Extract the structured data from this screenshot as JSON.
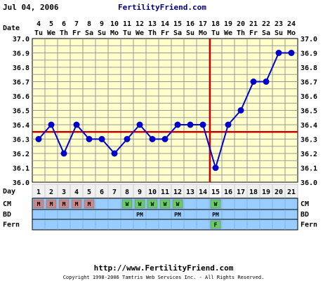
{
  "header": {
    "date": "Jul 04, 2006",
    "site": "FertilityFriend.com"
  },
  "footer": {
    "url": "http://www.FertilityFriend.com",
    "copyright": "Copyright 1998-2006 Tamtris Web Services Inc. - All Rights Reserved."
  },
  "colors": {
    "plot_bg": "#ffffcc",
    "grid": "#999999",
    "line": "#0000cc",
    "point": "#0000cc",
    "coverline": "#cc0000",
    "ovulation_line": "#cc0000",
    "row_bg": "#99ccff",
    "cm_menses": "#cc8888",
    "cm_watery": "#66cc66",
    "fern_positive": "#66cc66"
  },
  "chart_data": {
    "type": "line",
    "row_labels": {
      "date": "Date",
      "day": "Day",
      "cm": "CM",
      "bd": "BD",
      "fern": "Fern"
    },
    "dates": [
      "4",
      "5",
      "6",
      "7",
      "8",
      "9",
      "10",
      "11",
      "12",
      "13",
      "14",
      "15",
      "16",
      "17",
      "18",
      "19",
      "20",
      "21",
      "22",
      "23",
      "24"
    ],
    "weekdays": [
      "Tu",
      "We",
      "Th",
      "Fr",
      "Sa",
      "Su",
      "Mo",
      "Tu",
      "We",
      "Th",
      "Fr",
      "Sa",
      "Su",
      "Mo",
      "Tu",
      "We",
      "Th",
      "Fr",
      "Sa",
      "Su",
      "Mo"
    ],
    "cycle_days": [
      "1",
      "2",
      "3",
      "4",
      "5",
      "6",
      "7",
      "8",
      "9",
      "10",
      "11",
      "12",
      "13",
      "14",
      "15",
      "16",
      "17",
      "18",
      "19",
      "20",
      "21"
    ],
    "temperatures": [
      36.3,
      36.4,
      36.2,
      36.4,
      36.3,
      36.3,
      36.2,
      36.3,
      36.4,
      36.3,
      36.3,
      36.4,
      36.4,
      36.4,
      36.1,
      36.4,
      36.5,
      36.7,
      36.7,
      36.9,
      36.9
    ],
    "y_ticks": [
      "37.0",
      "36.9",
      "36.8",
      "36.7",
      "36.6",
      "36.5",
      "36.4",
      "36.3",
      "36.2",
      "36.1",
      "36.0"
    ],
    "ylim": [
      36.0,
      37.0
    ],
    "coverline": 36.35,
    "ovulation_index": 14,
    "cervical_mucus": [
      "M",
      "M",
      "M",
      "M",
      "M",
      "",
      "",
      "W",
      "W",
      "W",
      "W",
      "W",
      "",
      "",
      "W",
      "",
      "",
      "",
      "",
      "",
      ""
    ],
    "bd": [
      "",
      "",
      "",
      "",
      "",
      "",
      "",
      "",
      "PM",
      "",
      "",
      "PM",
      "",
      "",
      "PM",
      "",
      "",
      "",
      "",
      "",
      ""
    ],
    "fern": [
      "",
      "",
      "",
      "",
      "",
      "",
      "",
      "",
      "",
      "",
      "",
      "",
      "",
      "",
      "F",
      "",
      "",
      "",
      "",
      "",
      ""
    ],
    "grid": true
  }
}
